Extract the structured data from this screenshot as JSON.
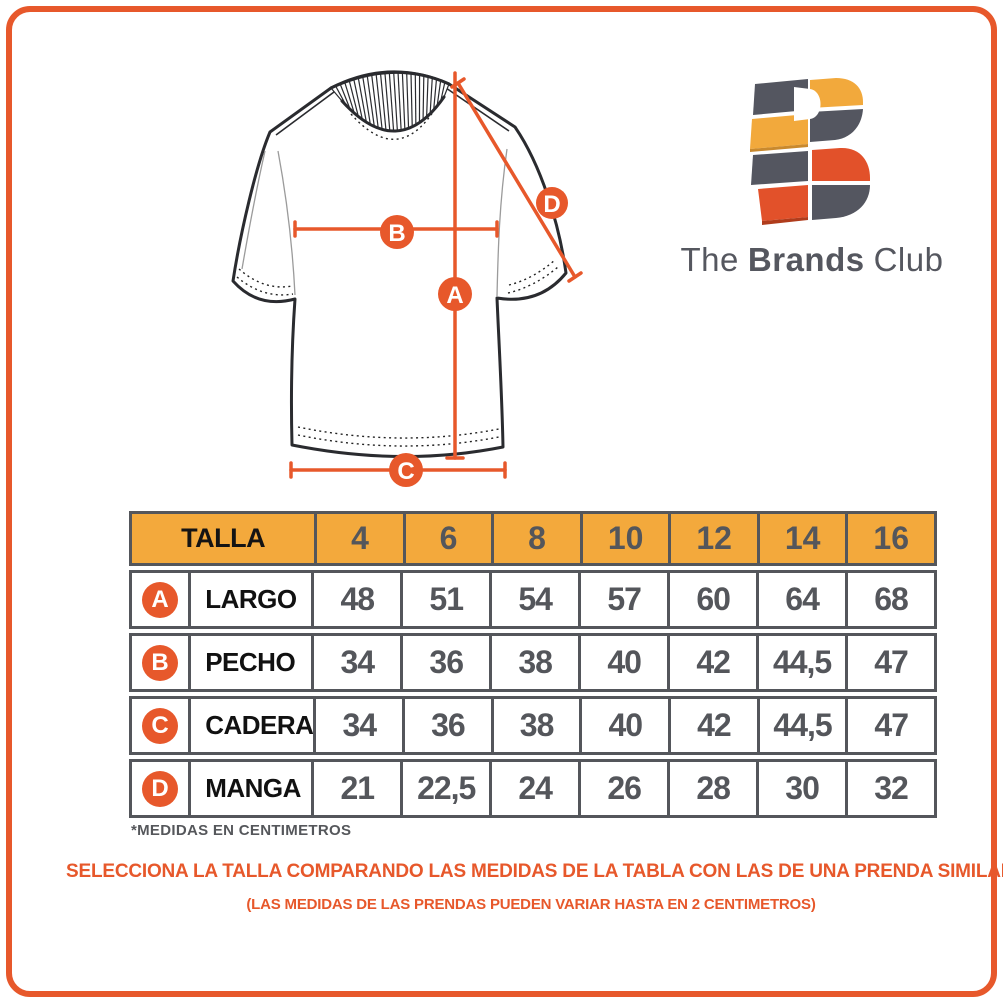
{
  "colors": {
    "accent_orange": "#E7582B",
    "table_header_amber": "#F3A93C",
    "slate_gray": "#54565B",
    "ink": "#111111",
    "logo_dark": "#545660",
    "logo_yellow": "#F2A93C",
    "logo_red": "#E2512A"
  },
  "logo": {
    "the": "The",
    "brands": "Brands",
    "club": "Club"
  },
  "diagram": {
    "markers": {
      "a": "A",
      "b": "B",
      "c": "C",
      "d": "D"
    }
  },
  "table": {
    "header_label": "TALLA",
    "sizes": [
      "4",
      "6",
      "8",
      "10",
      "12",
      "14",
      "16"
    ],
    "rows": [
      {
        "key": "A",
        "label": "LARGO",
        "values": [
          "48",
          "51",
          "54",
          "57",
          "60",
          "64",
          "68"
        ]
      },
      {
        "key": "B",
        "label": "PECHO",
        "values": [
          "34",
          "36",
          "38",
          "40",
          "42",
          "44,5",
          "47"
        ]
      },
      {
        "key": "C",
        "label": "CADERA",
        "values": [
          "34",
          "36",
          "38",
          "40",
          "42",
          "44,5",
          "47"
        ]
      },
      {
        "key": "D",
        "label": "MANGA",
        "values": [
          "21",
          "22,5",
          "24",
          "26",
          "28",
          "30",
          "32"
        ]
      }
    ]
  },
  "notes": {
    "units": "*MEDIDAS EN CENTIMETROS",
    "select_line1": "SELECCIONA LA TALLA COMPARANDO LAS MEDIDAS DE LA TABLA CON LAS DE UNA PRENDA SIMILAR",
    "select_line2": "(LAS MEDIDAS DE LAS PRENDAS PUEDEN VARIAR HASTA EN 2 CENTIMETROS)"
  }
}
